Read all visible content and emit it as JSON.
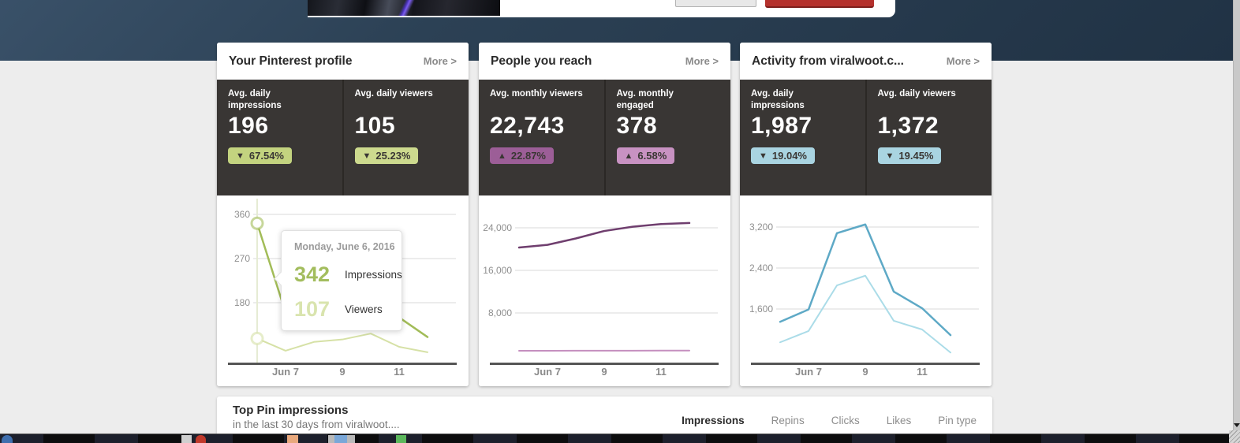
{
  "header": {
    "band_color": "#2c4155",
    "secondary_button_color": "#e8e8e8",
    "primary_button_color": "#b5312d"
  },
  "cards": [
    {
      "title": "Your Pinterest profile",
      "more_label": "More >",
      "stats": [
        {
          "label": "Avg. daily\nimpressions",
          "value": "196",
          "arrow": "▼",
          "direction": "down",
          "change": "67.54%",
          "badge_bg": "#c3d37f"
        },
        {
          "label": "Avg. daily viewers",
          "value": "105",
          "arrow": "▼",
          "direction": "down",
          "change": "25.23%",
          "badge_bg": "#cdda8e"
        }
      ],
      "tooltip": {
        "date": "Monday, June 6, 2016",
        "rows": [
          {
            "value": "342",
            "label": "Impressions",
            "color": "#a3bd5e"
          },
          {
            "value": "107",
            "label": "Viewers",
            "color": "#d9e4ae"
          }
        ]
      },
      "chart_data": {
        "type": "line",
        "x": [
          6,
          7,
          8,
          9,
          10,
          11,
          12
        ],
        "x_unit": "June 2016 (day)",
        "xticks": [
          {
            "label": "Jun 7",
            "x": 7
          },
          {
            "label": "9",
            "x": 9
          },
          {
            "label": "11",
            "x": 11
          }
        ],
        "yticks": [
          180,
          270,
          360
        ],
        "ytick_labels": [
          "180",
          "270",
          "360"
        ],
        "grid": true,
        "legend": "none",
        "highlight": {
          "x": 6,
          "color": "#e6ecd4"
        },
        "series": [
          {
            "name": "Impressions",
            "color": "#a2bc58",
            "values": [
              342,
              160,
              148,
              152,
              154,
              150,
              110
            ]
          },
          {
            "name": "Viewers",
            "color": "#d6e1a6",
            "values": [
              107,
              82,
              100,
              105,
              117,
              90,
              79
            ]
          }
        ]
      }
    },
    {
      "title": "People you reach",
      "more_label": "More >",
      "stats": [
        {
          "label": "Avg. monthly viewers",
          "value": "22,743",
          "arrow": "▲",
          "direction": "up",
          "change": "22.87%",
          "badge_bg": "#9c5e97"
        },
        {
          "label": "Avg. monthly\nengaged",
          "value": "378",
          "arrow": "▲",
          "direction": "up",
          "change": "6.58%",
          "badge_bg": "#c892c2"
        }
      ],
      "chart_data": {
        "type": "line",
        "x": [
          6,
          7,
          8,
          9,
          10,
          11,
          12
        ],
        "x_unit": "June 2016 (day)",
        "xticks": [
          {
            "label": "Jun 7",
            "x": 7
          },
          {
            "label": "9",
            "x": 9
          },
          {
            "label": "11",
            "x": 11
          }
        ],
        "yticks": [
          8000,
          16000,
          24000
        ],
        "ytick_labels": [
          "8,000",
          "16,000",
          "24,000"
        ],
        "grid": true,
        "legend": "none",
        "series": [
          {
            "name": "Avg. monthly viewers",
            "color": "#6f3e6e",
            "values": [
              20300,
              20800,
              22000,
              23400,
              24200,
              24700,
              24900
            ]
          },
          {
            "name": "Avg. monthly engaged",
            "color": "#c58fbf",
            "values": [
              890,
              890,
              900,
              900,
              910,
              920,
              930
            ]
          }
        ]
      }
    },
    {
      "title": "Activity from viralwoot.c...",
      "more_label": "More >",
      "stats": [
        {
          "label": "Avg. daily\nimpressions",
          "value": "1,987",
          "arrow": "▼",
          "direction": "down",
          "change": "19.04%",
          "badge_bg": "#a9d4e1"
        },
        {
          "label": "Avg. daily viewers",
          "value": "1,372",
          "arrow": "▼",
          "direction": "down",
          "change": "19.45%",
          "badge_bg": "#a9d4e1"
        }
      ],
      "chart_data": {
        "type": "line",
        "x": [
          6,
          7,
          8,
          9,
          10,
          11,
          12
        ],
        "x_unit": "June 2016 (day)",
        "xticks": [
          {
            "label": "Jun 7",
            "x": 7
          },
          {
            "label": "9",
            "x": 9
          },
          {
            "label": "11",
            "x": 11
          }
        ],
        "yticks": [
          1600,
          2400,
          3200
        ],
        "ytick_labels": [
          "1,600",
          "2,400",
          "3,200"
        ],
        "grid": true,
        "legend": "none",
        "series": [
          {
            "name": "Impressions",
            "color": "#5ea9c6",
            "values": [
              1350,
              1590,
              3080,
              3250,
              1940,
              1615,
              1090
            ]
          },
          {
            "name": "Viewers",
            "color": "#abdce8",
            "values": [
              950,
              1170,
              2060,
              2250,
              1370,
              1200,
              750
            ]
          }
        ]
      }
    }
  ],
  "bottom_panel": {
    "title": "Top Pin impressions",
    "subtitle": "in the last 30 days from viralwoot....",
    "tabs": [
      {
        "label": "Impressions",
        "active": true
      },
      {
        "label": "Repins",
        "active": false
      },
      {
        "label": "Clicks",
        "active": false
      },
      {
        "label": "Likes",
        "active": false
      },
      {
        "label": "Pin type",
        "active": false
      }
    ]
  }
}
